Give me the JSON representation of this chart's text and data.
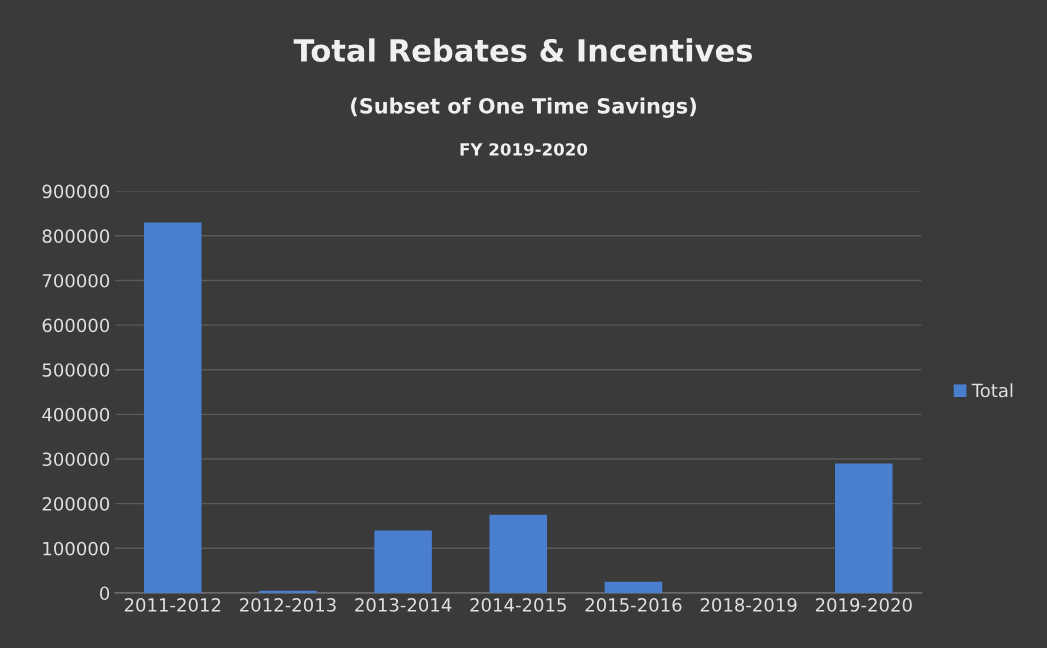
{
  "chart_data": {
    "type": "bar",
    "title": "Total Rebates & Incentives",
    "subtitle": "(Subset of One Time Savings)",
    "annotations": [
      "FY 2019-2020"
    ],
    "categories": [
      "2011-2012",
      "2012-2013",
      "2013-2014",
      "2014-2015",
      "2015-2016",
      "2018-2019",
      "2019-2020"
    ],
    "series": [
      {
        "name": "Total",
        "color": "#4a7fd0",
        "values": [
          830000,
          5000,
          140000,
          175000,
          25000,
          0,
          290000
        ]
      }
    ],
    "ylim": [
      0,
      900000
    ],
    "yticks": [
      0,
      100000,
      200000,
      300000,
      400000,
      500000,
      600000,
      700000,
      800000,
      900000
    ],
    "grid": "y",
    "legend": "right"
  }
}
